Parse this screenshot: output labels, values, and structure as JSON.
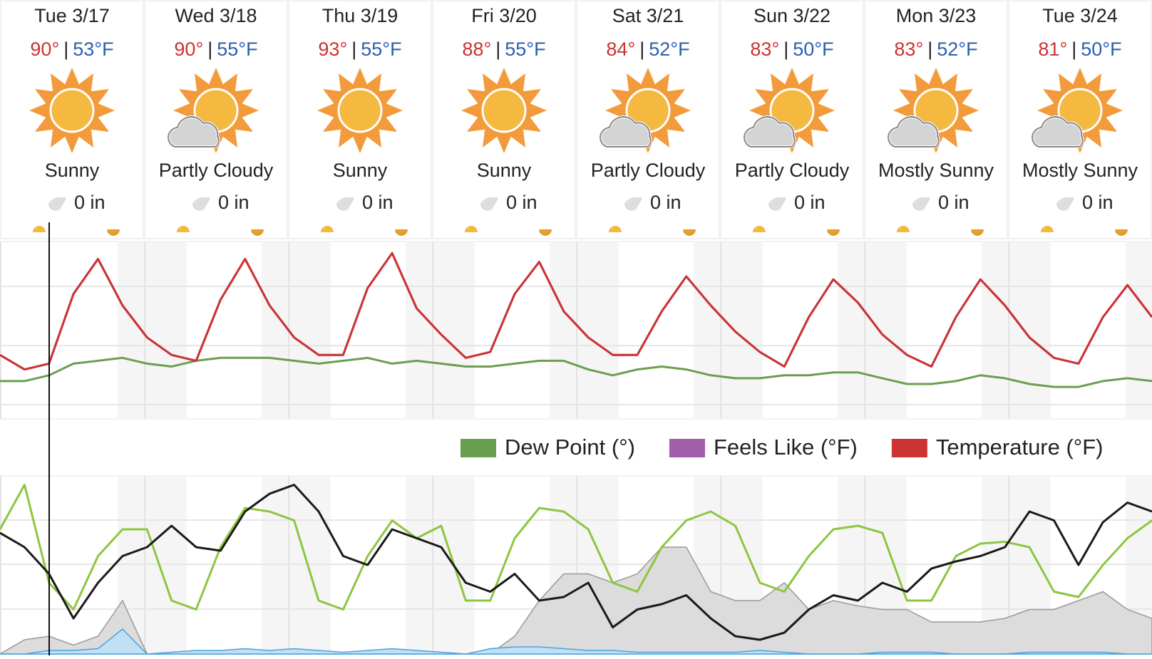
{
  "separator": "|",
  "days": [
    {
      "date": "Tue 3/17",
      "high": "90°",
      "low": "53°F",
      "condition": "Sunny",
      "precip": "0 in"
    },
    {
      "date": "Wed 3/18",
      "high": "90°",
      "low": "55°F",
      "condition": "Partly Cloudy",
      "precip": "0 in"
    },
    {
      "date": "Thu 3/19",
      "high": "93°",
      "low": "55°F",
      "condition": "Sunny",
      "precip": "0 in"
    },
    {
      "date": "Fri 3/20",
      "high": "88°",
      "low": "55°F",
      "condition": "Sunny",
      "precip": "0 in"
    },
    {
      "date": "Sat 3/21",
      "high": "84°",
      "low": "52°F",
      "condition": "Partly Cloudy",
      "precip": "0 in"
    },
    {
      "date": "Sun 3/22",
      "high": "83°",
      "low": "50°F",
      "condition": "Partly Cloudy",
      "precip": "0 in"
    },
    {
      "date": "Mon 3/23",
      "high": "83°",
      "low": "52°F",
      "condition": "Mostly Sunny",
      "precip": "0 in"
    },
    {
      "date": "Tue 3/24",
      "high": "81°",
      "low": "50°F",
      "condition": "Mostly Sunny",
      "precip": "0 in"
    }
  ],
  "chart_data": [
    {
      "type": "line",
      "ylim": [
        35,
        96
      ],
      "series": [
        {
          "name": "Dew Point (°)",
          "color": "#6a9f4f",
          "values": [
            48,
            48,
            50,
            54,
            55,
            56,
            54,
            53,
            55,
            56,
            56,
            56,
            55,
            54,
            55,
            56,
            54,
            55,
            54,
            53,
            53,
            54,
            55,
            55,
            52,
            50,
            52,
            53,
            52,
            50,
            49,
            49,
            50,
            50,
            51,
            51,
            49,
            47,
            47,
            48,
            50,
            49,
            47,
            46,
            46,
            48,
            49,
            48
          ]
        },
        {
          "name": "Feels Like (°F)",
          "color": "#a05ea8",
          "values": [
            57,
            52,
            54,
            78,
            90,
            74,
            63,
            57,
            55,
            76,
            90,
            74,
            63,
            57,
            57,
            80,
            92,
            73,
            64,
            56,
            58,
            78,
            89,
            72,
            63,
            57,
            57,
            72,
            84,
            74,
            65,
            58,
            53,
            70,
            83,
            75,
            64,
            57,
            53,
            70,
            83,
            74,
            63,
            56,
            54,
            70,
            81,
            70
          ]
        },
        {
          "name": "Temperature (°F)",
          "color": "#cc3333",
          "values": [
            57,
            52,
            54,
            78,
            90,
            74,
            63,
            57,
            55,
            76,
            90,
            74,
            63,
            57,
            57,
            80,
            92,
            73,
            64,
            56,
            58,
            78,
            89,
            72,
            63,
            57,
            57,
            72,
            84,
            74,
            65,
            58,
            53,
            70,
            83,
            75,
            64,
            57,
            53,
            70,
            83,
            74,
            63,
            56,
            54,
            70,
            81,
            70
          ]
        }
      ]
    },
    {
      "type": "line",
      "ylim": [
        0,
        100
      ],
      "series": [
        {
          "color": "#999999",
          "fill": "#dcdcdc",
          "values": [
            0,
            8,
            10,
            5,
            10,
            30,
            0,
            0,
            0,
            0,
            0,
            0,
            0,
            0,
            0,
            0,
            0,
            0,
            0,
            0,
            0,
            10,
            30,
            45,
            45,
            40,
            45,
            60,
            60,
            35,
            30,
            30,
            40,
            25,
            30,
            27,
            25,
            25,
            18,
            18,
            18,
            20,
            25,
            25,
            30,
            35,
            25,
            20
          ]
        },
        {
          "color": "#4aa3df",
          "fill": "#bfe0f5",
          "values": [
            0,
            0,
            2,
            2,
            3,
            14,
            0,
            1,
            2,
            2,
            3,
            2,
            3,
            2,
            1,
            2,
            3,
            2,
            1,
            0,
            3,
            4,
            4,
            3,
            2,
            2,
            1,
            1,
            1,
            1,
            1,
            2,
            1,
            0,
            0,
            0,
            1,
            1,
            1,
            0,
            0,
            0,
            1,
            1,
            1,
            1,
            0,
            0
          ]
        },
        {
          "color": "#8dc63f",
          "values": [
            70,
            95,
            40,
            25,
            55,
            70,
            70,
            30,
            25,
            60,
            82,
            80,
            75,
            30,
            25,
            55,
            75,
            65,
            72,
            30,
            30,
            65,
            82,
            80,
            70,
            40,
            35,
            60,
            75,
            80,
            72,
            40,
            35,
            55,
            70,
            72,
            68,
            30,
            30,
            55,
            62,
            63,
            60,
            35,
            32,
            50,
            65,
            75
          ]
        },
        {
          "color": "#1a1a1a",
          "values": [
            68,
            60,
            45,
            20,
            40,
            55,
            60,
            72,
            60,
            58,
            80,
            90,
            95,
            80,
            55,
            50,
            70,
            65,
            60,
            40,
            35,
            45,
            30,
            32,
            40,
            15,
            25,
            28,
            33,
            20,
            10,
            8,
            12,
            25,
            33,
            30,
            40,
            35,
            48,
            52,
            55,
            60,
            80,
            75,
            50,
            74,
            85,
            80
          ]
        }
      ]
    }
  ]
}
